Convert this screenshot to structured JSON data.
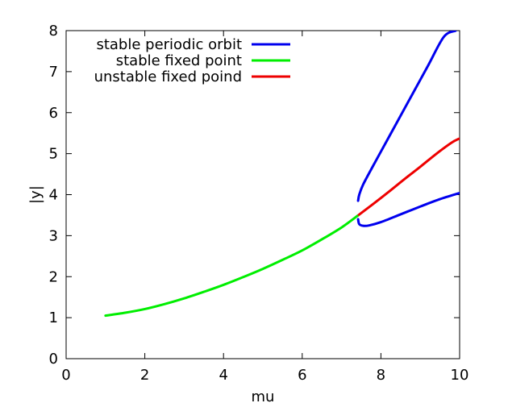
{
  "chart_data": {
    "type": "line",
    "title": "",
    "xlabel": "mu",
    "ylabel": "|y|",
    "xlim": [
      0,
      10
    ],
    "ylim": [
      0,
      8
    ],
    "x_ticks": [
      0,
      2,
      4,
      6,
      8,
      10
    ],
    "y_ticks": [
      0,
      1,
      2,
      3,
      4,
      5,
      6,
      7,
      8
    ],
    "grid": false,
    "legend_position": "top-left",
    "series": [
      {
        "name": "stable periodic orbit",
        "color": "#0000ee",
        "branches": [
          {
            "x": [
              7.42,
              7.45,
              7.55,
              7.8,
              8.0,
              8.4,
              8.8,
              9.2,
              9.6,
              9.9
            ],
            "y": [
              3.85,
              4.0,
              4.25,
              4.7,
              5.05,
              5.75,
              6.45,
              7.15,
              7.85,
              8.0
            ]
          },
          {
            "x": [
              7.42,
              7.45,
              7.55,
              7.7,
              8.0,
              8.5,
              9.0,
              9.5,
              10.0
            ],
            "y": [
              3.4,
              3.28,
              3.24,
              3.25,
              3.33,
              3.52,
              3.71,
              3.89,
              4.04
            ]
          }
        ]
      },
      {
        "name": "stable fixed point",
        "color": "#00ee00",
        "branches": [
          {
            "x": [
              1.0,
              1.5,
              2.0,
              2.5,
              3.0,
              3.5,
              4.0,
              4.5,
              5.0,
              5.5,
              6.0,
              6.5,
              7.0,
              7.4
            ],
            "y": [
              1.05,
              1.12,
              1.21,
              1.33,
              1.47,
              1.63,
              1.8,
              1.99,
              2.19,
              2.41,
              2.64,
              2.91,
              3.2,
              3.48
            ]
          }
        ]
      },
      {
        "name": "unstable fixed poind",
        "color": "#ee0000",
        "branches": [
          {
            "x": [
              7.4,
              7.8,
              8.2,
              8.6,
              9.0,
              9.4,
              9.8,
              10.0
            ],
            "y": [
              3.48,
              3.77,
              4.07,
              4.38,
              4.68,
              4.99,
              5.27,
              5.37
            ]
          }
        ]
      }
    ]
  }
}
